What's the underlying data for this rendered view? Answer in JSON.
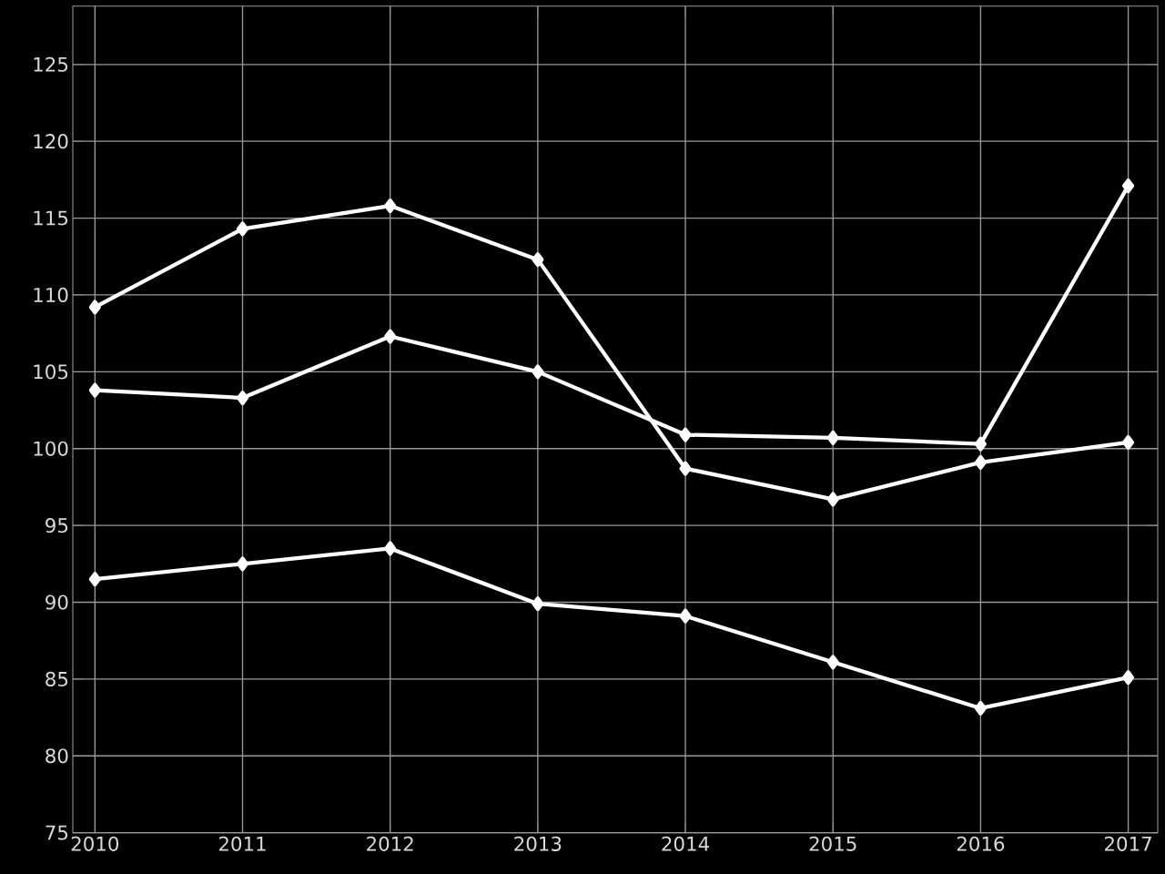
{
  "chart_data": {
    "type": "line",
    "x": [
      2010,
      2011,
      2012,
      2013,
      2014,
      2015,
      2016,
      2017
    ],
    "series": [
      {
        "color": "#ffffff",
        "values": [
          109.2,
          114.3,
          115.8,
          112.3,
          98.7,
          96.7,
          99.1,
          100.4
        ]
      },
      {
        "color": "#ffffff",
        "values": [
          103.8,
          103.3,
          107.3,
          105.0,
          100.9,
          100.7,
          100.3,
          117.1
        ]
      },
      {
        "color": "#ffffff",
        "values": [
          91.5,
          92.5,
          93.5,
          89.9,
          89.1,
          86.1,
          83.1,
          85.1
        ]
      }
    ],
    "xlim": [
      2009.85,
      2017.2
    ],
    "ylim": [
      75,
      128.8
    ],
    "xticks": [
      2010,
      2011,
      2012,
      2013,
      2014,
      2015,
      2016,
      2017
    ],
    "yticks": [
      75,
      80,
      85,
      90,
      95,
      100,
      105,
      110,
      115,
      120,
      125
    ],
    "grid": true,
    "marker": "diamond",
    "line_style": "solid"
  }
}
